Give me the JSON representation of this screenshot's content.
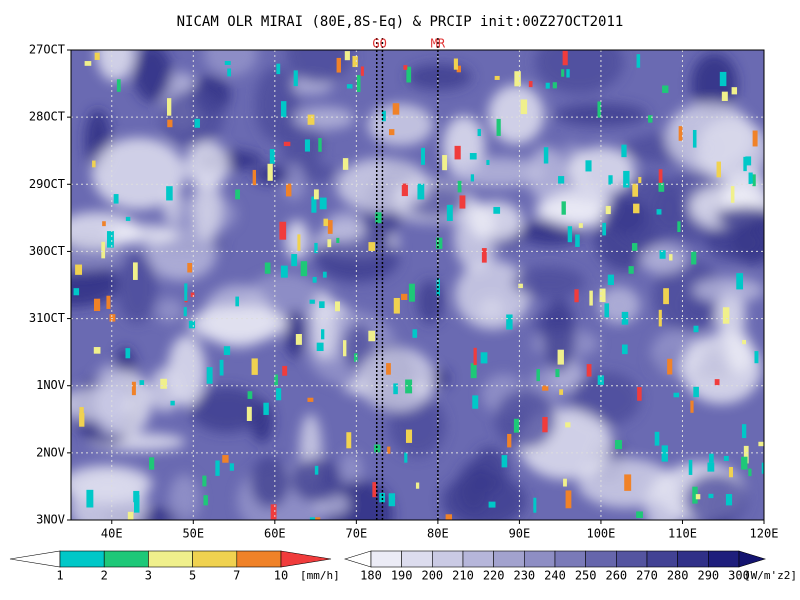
{
  "chart_data": {
    "type": "hovmoller",
    "title": "NICAM OLR MIRAI (80E,8S-Eq) & PRCIP init:00Z27OCT2011",
    "xlim": [
      35,
      120
    ],
    "xticks": [
      {
        "value": 40,
        "label": "40E"
      },
      {
        "value": 50,
        "label": "50E"
      },
      {
        "value": 60,
        "label": "60E"
      },
      {
        "value": 70,
        "label": "70E"
      },
      {
        "value": 80,
        "label": "80E"
      },
      {
        "value": 90,
        "label": "90E"
      },
      {
        "value": 100,
        "label": "100E"
      },
      {
        "value": 110,
        "label": "110E"
      },
      {
        "value": 120,
        "label": "120E"
      }
    ],
    "y_categories": [
      "27OCT",
      "28OCT",
      "29OCT",
      "30OCT",
      "31OCT",
      "1NOV",
      "2NOV",
      "3NOV"
    ],
    "grid": true,
    "sites": [
      {
        "label": "GO",
        "x": [
          72.5,
          73.2
        ]
      },
      {
        "label": "MR",
        "x": [
          80
        ]
      }
    ],
    "precip_colorbar": {
      "levels": [
        1,
        2,
        3,
        5,
        7,
        10
      ],
      "unit": "[mm/h]",
      "colors": [
        "#ffffff",
        "#00c8c8",
        "#1ec878",
        "#f0f08c",
        "#f0d250",
        "#f08228",
        "#f03c3c"
      ]
    },
    "olr_colorbar": {
      "levels": [
        180,
        190,
        200,
        210,
        220,
        230,
        240,
        250,
        260,
        270,
        280,
        290,
        300
      ],
      "unit": "[W/m'z2]",
      "colors": [
        "#ffffff",
        "#ececf6",
        "#dcdcee",
        "#cacae4",
        "#b6b6da",
        "#a2a2ce",
        "#8e8ec4",
        "#7a7ab8",
        "#6666ac",
        "#5454a0",
        "#424294",
        "#303088",
        "#1e1e7c",
        "#141470"
      ]
    }
  }
}
